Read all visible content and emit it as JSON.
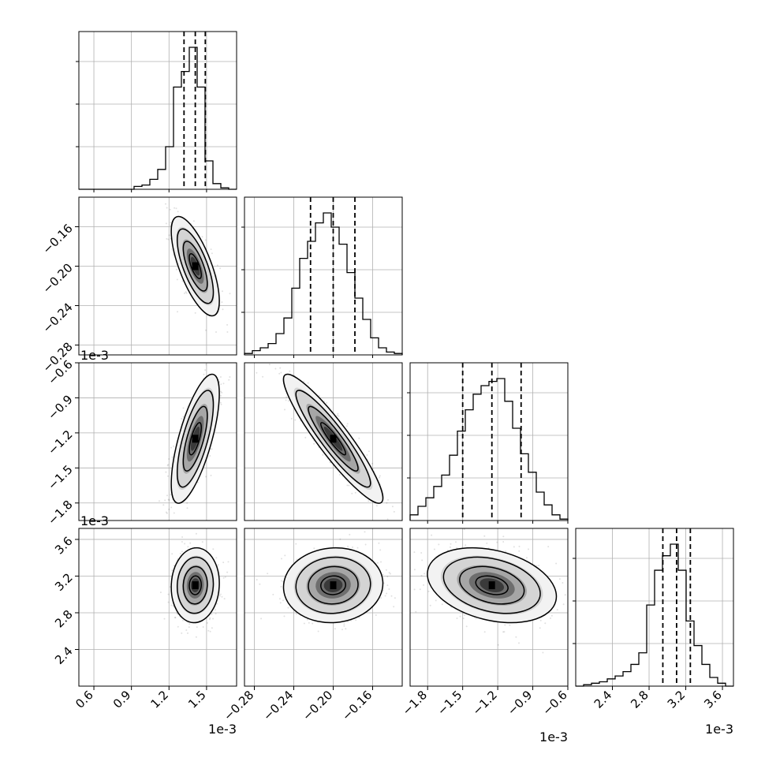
{
  "chart_data": {
    "type": "corner",
    "grid": true,
    "parameters": [
      {
        "x_ticks": [
          "0.6",
          "0.9",
          "1.2",
          "1.5"
        ],
        "x_tick_values": [
          0.6,
          0.9,
          1.2,
          1.5
        ],
        "x_range": [
          0.48,
          1.74
        ],
        "x_offset": "1e-3",
        "hist": {
          "bin_edges": [
            0.48,
            0.543,
            0.606,
            0.669,
            0.732,
            0.795,
            0.858,
            0.921,
            0.984,
            1.047,
            1.11,
            1.173,
            1.236,
            1.299,
            1.362,
            1.425,
            1.488,
            1.551,
            1.614,
            1.677,
            1.74
          ],
          "counts": [
            0,
            0,
            0,
            0,
            0,
            0,
            0,
            0.02,
            0.03,
            0.07,
            0.14,
            0.3,
            0.72,
            0.83,
            1.0,
            0.72,
            0.2,
            0.04,
            0.01,
            0
          ],
          "quantiles": [
            1.32,
            1.41,
            1.49
          ]
        }
      },
      {
        "x_ticks": [
          "−0.28",
          "−0.24",
          "−0.20",
          "−0.16"
        ],
        "x_tick_values": [
          -0.28,
          -0.24,
          -0.2,
          -0.16
        ],
        "y_ticks": [
          "−0.28",
          "−0.24",
          "−0.20",
          "−0.16"
        ],
        "y_tick_values": [
          -0.28,
          -0.24,
          -0.2,
          -0.16
        ],
        "x_range": [
          -0.29,
          -0.13
        ],
        "y_offset": "1e-3",
        "hist": {
          "bin_edges": [
            -0.29,
            -0.282,
            -0.274,
            -0.266,
            -0.258,
            -0.25,
            -0.242,
            -0.234,
            -0.226,
            -0.218,
            -0.21,
            -0.202,
            -0.194,
            -0.186,
            -0.178,
            -0.17,
            -0.162,
            -0.154,
            -0.146,
            -0.138,
            -0.13
          ],
          "counts": [
            0.01,
            0.03,
            0.05,
            0.08,
            0.15,
            0.26,
            0.47,
            0.68,
            0.8,
            0.93,
            1.0,
            0.9,
            0.78,
            0.58,
            0.4,
            0.25,
            0.12,
            0.05,
            0.02,
            0.01
          ],
          "quantiles": [
            -0.223,
            -0.2,
            -0.178
          ]
        }
      },
      {
        "x_ticks": [
          "−1.8",
          "−1.5",
          "−1.2",
          "−0.9",
          "−0.6"
        ],
        "x_tick_values": [
          -1.8,
          -1.5,
          -1.2,
          -0.9,
          -0.6
        ],
        "y_ticks": [
          "−1.8",
          "−1.5",
          "−1.2",
          "−0.9",
          "−0.6"
        ],
        "y_tick_values": [
          -1.8,
          -1.5,
          -1.2,
          -0.9,
          -0.6
        ],
        "x_range": [
          -1.95,
          -0.6
        ],
        "x_offset": "1e-3",
        "y_offset": "1e-3",
        "hist": {
          "bin_edges": [
            -1.95,
            -1.8825,
            -1.815,
            -1.7475,
            -1.68,
            -1.6125,
            -1.545,
            -1.4775,
            -1.41,
            -1.3425,
            -1.275,
            -1.2075,
            -1.14,
            -1.0725,
            -1.005,
            -0.9375,
            -0.87,
            -0.8025,
            -0.735,
            -0.6675,
            -0.6
          ],
          "counts": [
            0.04,
            0.1,
            0.16,
            0.24,
            0.32,
            0.46,
            0.63,
            0.78,
            0.89,
            0.95,
            0.98,
            1.0,
            0.84,
            0.65,
            0.47,
            0.34,
            0.2,
            0.11,
            0.04,
            0.01
          ],
          "quantiles": [
            -1.5,
            -1.25,
            -1.0
          ]
        }
      },
      {
        "x_ticks": [
          "2.4",
          "2.8",
          "3.2",
          "3.6"
        ],
        "x_tick_values": [
          2.4,
          2.8,
          3.2,
          3.6
        ],
        "y_ticks": [
          "2.4",
          "2.8",
          "3.2",
          "3.6"
        ],
        "y_tick_values": [
          2.4,
          2.8,
          3.2,
          3.6
        ],
        "x_range": [
          2.0,
          3.72
        ],
        "x_offset": "1e-3",
        "hist": {
          "bin_edges": [
            2.0,
            2.086,
            2.172,
            2.258,
            2.344,
            2.43,
            2.516,
            2.602,
            2.688,
            2.774,
            2.86,
            2.946,
            3.032,
            3.118,
            3.204,
            3.29,
            3.376,
            3.462,
            3.548,
            3.634,
            3.72
          ],
          "counts": [
            0,
            0.01,
            0.02,
            0.03,
            0.05,
            0.07,
            0.1,
            0.15,
            0.23,
            0.56,
            0.8,
            0.9,
            0.98,
            0.8,
            0.45,
            0.28,
            0.15,
            0.06,
            0.02,
            0
          ],
          "quantiles": [
            2.95,
            3.1,
            3.25
          ]
        }
      }
    ],
    "pairs": [
      {
        "row": 1,
        "col": 0,
        "mean": [
          1.41,
          -0.2
        ],
        "sd": [
          0.08,
          0.021
        ],
        "rho": -0.7
      },
      {
        "row": 2,
        "col": 0,
        "mean": [
          1.41,
          -1.25
        ],
        "sd": [
          0.08,
          0.23
        ],
        "rho": 0.7
      },
      {
        "row": 2,
        "col": 1,
        "mean": [
          -0.2,
          -1.25
        ],
        "sd": [
          0.021,
          0.23
        ],
        "rho": -0.92
      },
      {
        "row": 3,
        "col": 0,
        "mean": [
          1.41,
          3.1
        ],
        "sd": [
          0.08,
          0.17
        ],
        "rho": 0.05
      },
      {
        "row": 3,
        "col": 1,
        "mean": [
          -0.2,
          3.1
        ],
        "sd": [
          0.021,
          0.17
        ],
        "rho": 0.05
      },
      {
        "row": 3,
        "col": 2,
        "mean": [
          -1.25,
          3.1
        ],
        "sd": [
          0.23,
          0.17
        ],
        "rho": -0.3
      }
    ],
    "contour_levels_sigma": [
      0.5,
      1.0,
      1.5,
      2.0
    ]
  }
}
